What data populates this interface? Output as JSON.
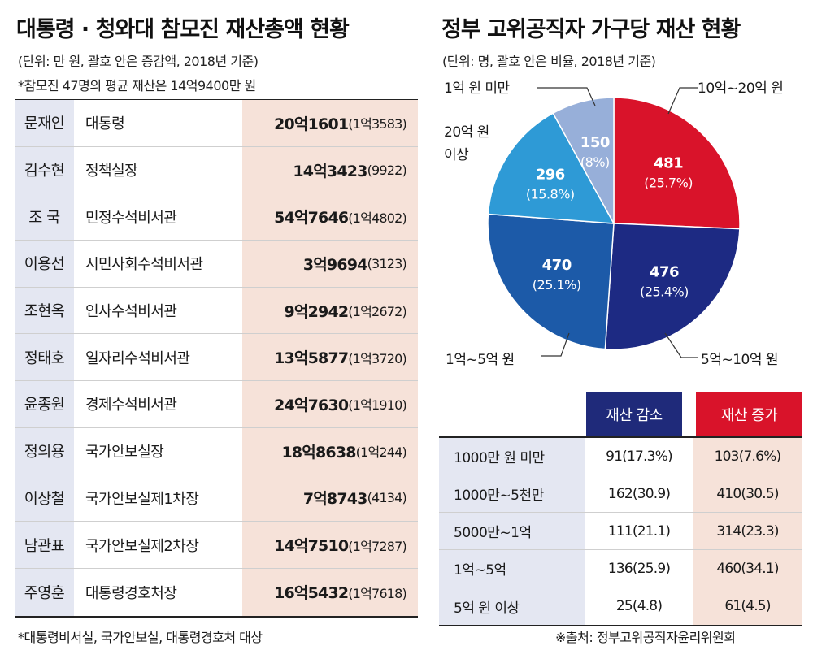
{
  "left": {
    "title": "대통령 · 청와대 참모진 재산총액 현황",
    "unit_note": "(단위: 만 원, 괄호 안은 증감액, 2018년 기준)",
    "avg_note": "*참모진 47명의 평균 재산은 14억9400만 원",
    "rows": [
      {
        "name": "문재인",
        "position": "대통령",
        "total": "20억1601",
        "change": "(1억3583)"
      },
      {
        "name": "김수현",
        "position": "정책실장",
        "total": "14억3423",
        "change": "(9922)"
      },
      {
        "name": "조 국",
        "position": "민정수석비서관",
        "total": "54억7646",
        "change": "(1억4802)"
      },
      {
        "name": "이용선",
        "position": "시민사회수석비서관",
        "total": "3억9694",
        "change": "(3123)"
      },
      {
        "name": "조현옥",
        "position": "인사수석비서관",
        "total": "9억2942",
        "change": "(1억2672)"
      },
      {
        "name": "정태호",
        "position": "일자리수석비서관",
        "total": "13억5877",
        "change": "(1억3720)"
      },
      {
        "name": "윤종원",
        "position": "경제수석비서관",
        "total": "24억7630",
        "change": "(1억1910)"
      },
      {
        "name": "정의용",
        "position": "국가안보실장",
        "total": "18억8638",
        "change": "(1억244)"
      },
      {
        "name": "이상철",
        "position": "국가안보실제1차장",
        "total": "7억8743",
        "change": "(4134)"
      },
      {
        "name": "남관표",
        "position": "국가안보실제2차장",
        "total": "14억7510",
        "change": "(1억7287)"
      },
      {
        "name": "주영훈",
        "position": "대통령경호처장",
        "total": "16억5432",
        "change": "(1억7618)"
      }
    ],
    "footnote": "*대통령비서실, 국가안보실, 대통령경호처 대상"
  },
  "right": {
    "title": "정부 고위공직자 가구당 재산 현황",
    "unit_note": "(단위: 명, 괄호 안은 비율, 2018년 기준)",
    "table": {
      "headers": {
        "decrease": "재산 감소",
        "increase": "재산 증가"
      },
      "rows": [
        {
          "label": "1000만 원 미만",
          "decrease": "91(17.3%)",
          "increase": "103(7.6%)"
        },
        {
          "label": "1000만~5천만",
          "decrease": "162(30.9)",
          "increase": "410(30.5)"
        },
        {
          "label": "5000만~1억",
          "decrease": "111(21.1)",
          "increase": "314(23.3)"
        },
        {
          "label": "1억~5억",
          "decrease": "136(25.9)",
          "increase": "460(34.1)"
        },
        {
          "label": "5억 원 이상",
          "decrease": "25(4.8)",
          "increase": "61(4.5)"
        }
      ]
    },
    "source": "※출처: 정부고위공직자윤리위원회"
  },
  "colors": {
    "header_blue": "#1f2a7a",
    "header_red": "#d9132a",
    "name_bg": "#e4e7f2",
    "value_bg": "#f6e2d9"
  },
  "chart_data": {
    "type": "pie",
    "title": "정부 고위공직자 가구당 재산 현황",
    "slices": [
      {
        "label": "10억~20억 원",
        "value": 481,
        "pct": "(25.7%)",
        "color": "#d9132a"
      },
      {
        "label": "5억~10억 원",
        "value": 476,
        "pct": "(25.4%)",
        "color": "#1d2a83"
      },
      {
        "label": "1억~5억 원",
        "value": 470,
        "pct": "(25.1%)",
        "color": "#1c5aa8"
      },
      {
        "label": "20억 원\n이상",
        "value": 296,
        "pct": "(15.8%)",
        "color": "#2e9ad6"
      },
      {
        "label": "1억 원 미만",
        "value": 150,
        "pct": "(8%)",
        "color": "#97afd9"
      }
    ]
  }
}
